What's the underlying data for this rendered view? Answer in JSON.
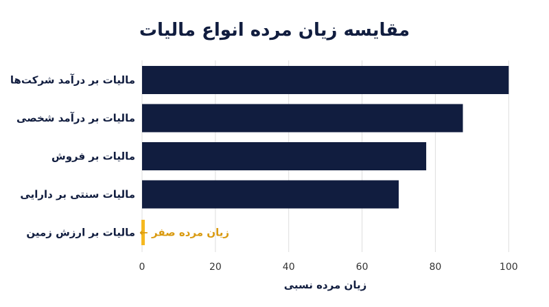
{
  "chart_data": {
    "type": "bar",
    "orientation": "horizontal",
    "title": "مقایسه زیان مرده انواع مالیات",
    "xlabel": "زیان مرده نسبی",
    "categories": [
      "مالیات بر درآمد شرکت‌ها",
      "مالیات بر درآمد شخصی",
      "مالیات بر فروش",
      "مالیات سنتی بر دارایی",
      "مالیات بر ارزش زمین"
    ],
    "values": [
      100,
      87.5,
      77.5,
      70,
      0
    ],
    "xlim": [
      0,
      105
    ],
    "xticks": [
      "0",
      "20",
      "40",
      "60",
      "80",
      "100"
    ],
    "grid": true,
    "annotation": {
      "text": "زیان مرده صفر ←",
      "category": "مالیات بر ارزش زمین"
    },
    "colors": {
      "bar": "#111d3f",
      "highlight": "#f5b820",
      "annotation": "#d99a10"
    }
  }
}
